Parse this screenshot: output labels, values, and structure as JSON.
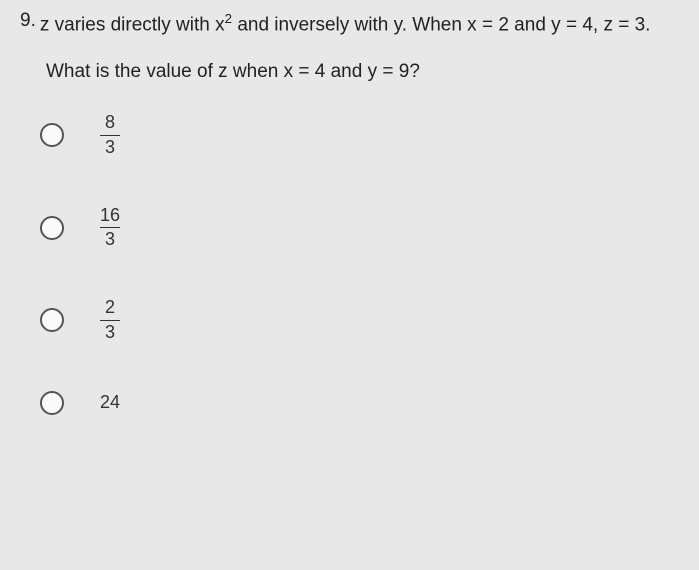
{
  "question": {
    "number": "9.",
    "text_part1": "z varies directly with x",
    "exponent": "2",
    "text_part2": " and inversely with y. When x = 2 and y = 4, z = 3.",
    "sub": "What is the value of z when x = 4 and y = 9?"
  },
  "options": [
    {
      "type": "fraction",
      "num": "8",
      "den": "3"
    },
    {
      "type": "fraction",
      "num": "16",
      "den": "3"
    },
    {
      "type": "fraction",
      "num": "2",
      "den": "3"
    },
    {
      "type": "whole",
      "value": "24"
    }
  ],
  "colors": {
    "background": "#e8e8e8",
    "text": "#222",
    "radio_border": "#555"
  }
}
